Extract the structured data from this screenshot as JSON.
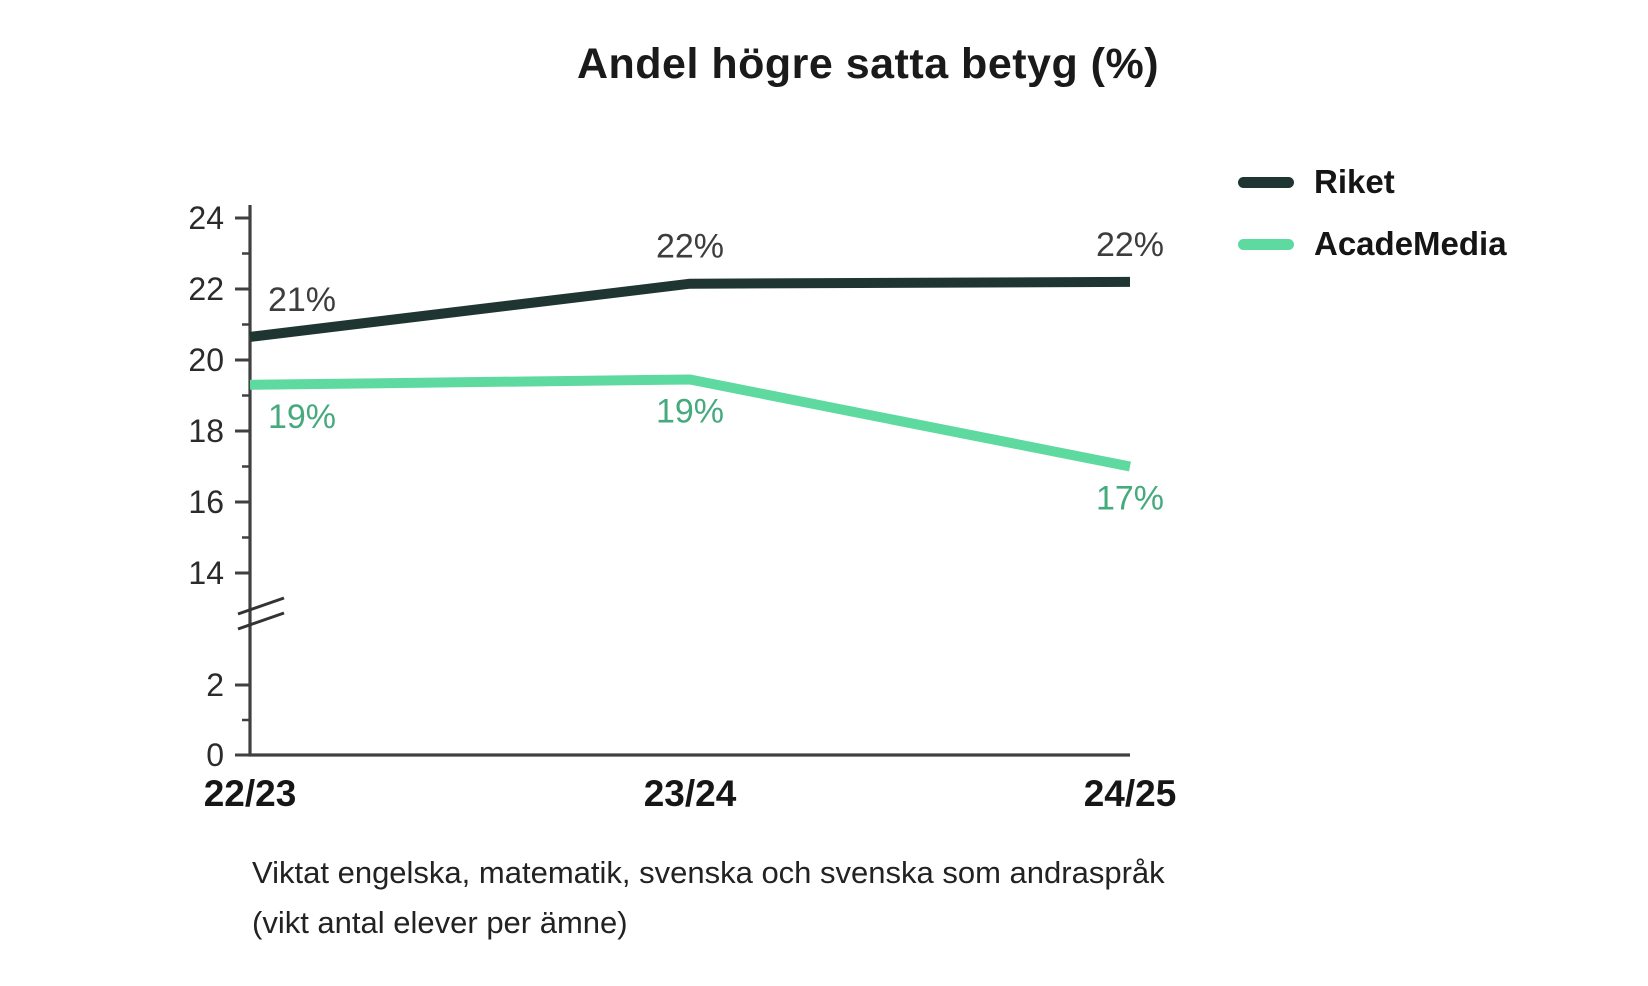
{
  "title": "Andel högre satta betyg (%)",
  "legend": {
    "items": [
      {
        "label": "Riket",
        "color": "#1f3531"
      },
      {
        "label": "AcadeMedia",
        "color": "#5ed9a0"
      }
    ]
  },
  "footnote": {
    "line1": "Viktat engelska, matematik, svenska och svenska som andraspråk",
    "line2": "(vikt antal elever per ämne)"
  },
  "chart_data": {
    "type": "line",
    "title": "Andel högre satta betyg (%)",
    "categories": [
      "22/23",
      "23/24",
      "24/25"
    ],
    "series": [
      {
        "name": "Riket",
        "color": "#1f3531",
        "label_color": "#3d3d3d",
        "values": [
          21,
          22,
          22
        ],
        "labels": [
          "21%",
          "22%",
          "22%"
        ],
        "values_precise": [
          20.65,
          22.15,
          22.2
        ],
        "label_position": "above"
      },
      {
        "name": "AcadeMedia",
        "color": "#5ed9a0",
        "label_color": "#46aa7e",
        "values": [
          19,
          19,
          17
        ],
        "labels": [
          "19%",
          "19%",
          "17%"
        ],
        "values_precise": [
          19.3,
          19.45,
          17.0
        ],
        "label_position": "below"
      }
    ],
    "xlabel": "",
    "ylabel": "",
    "y_axis": {
      "major_ticks": [
        0,
        2,
        14,
        16,
        18,
        20,
        22,
        24
      ],
      "minor_ticks": [
        1,
        15,
        17,
        19,
        21,
        23
      ],
      "axis_break_between": [
        2,
        14
      ],
      "range_lower": [
        0,
        2
      ],
      "range_upper": [
        14,
        24
      ]
    },
    "grid": false,
    "legend_position": "top-right"
  }
}
